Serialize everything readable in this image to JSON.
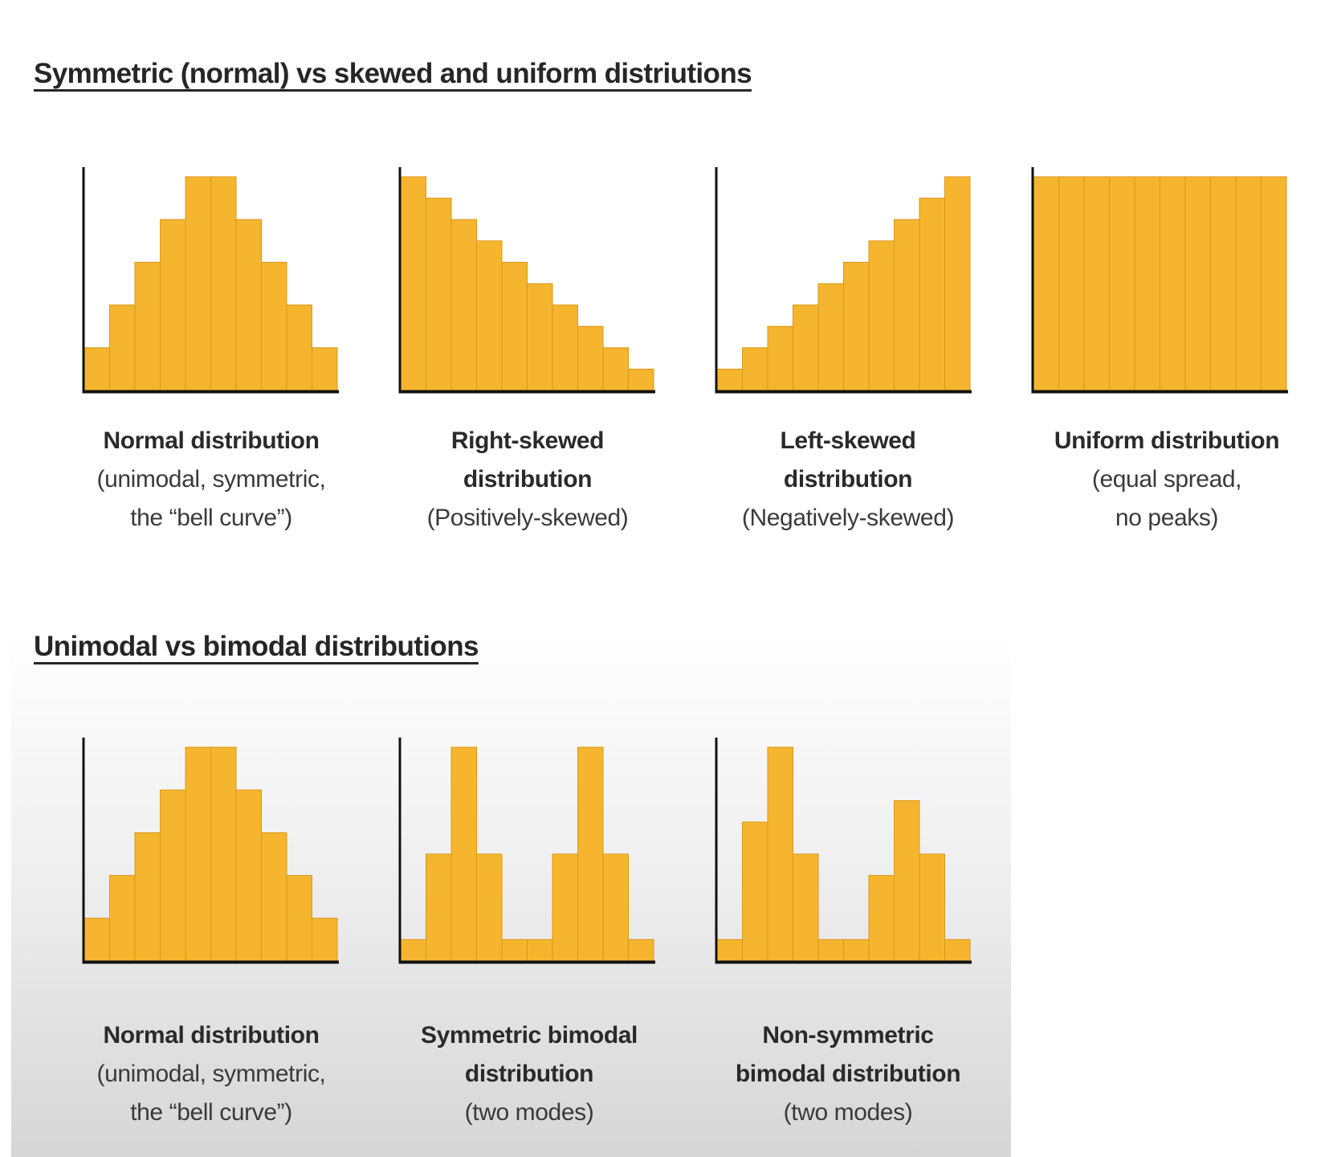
{
  "sections": [
    {
      "title": "Symmetric (normal) vs skewed and uniform distriutions"
    },
    {
      "title": "Unimodal vs bimodal distributions"
    }
  ],
  "colors": {
    "bar": "#f5b52e",
    "bar_line": "#d9981a",
    "axis": "#111111"
  },
  "captions": [
    {
      "title": [
        "Normal distribution"
      ],
      "sub": [
        "(unimodal, symmetric,",
        "the “bell curve”)"
      ]
    },
    {
      "title": [
        "Right-skewed",
        "distribution"
      ],
      "sub": [
        "(Positively-skewed)"
      ]
    },
    {
      "title": [
        "Left-skewed",
        "distribution"
      ],
      "sub": [
        "(Negatively-skewed)"
      ]
    },
    {
      "title": [
        "Uniform distribution"
      ],
      "sub": [
        "(equal spread,",
        "no peaks)"
      ]
    },
    {
      "title": [
        "Normal distribution"
      ],
      "sub": [
        "(unimodal, symmetric,",
        "the “bell curve”)"
      ]
    },
    {
      "title": [
        "Symmetric bimodal",
        "distribution"
      ],
      "sub": [
        "(two modes)"
      ]
    },
    {
      "title": [
        "Non-symmetric",
        "bimodal distribution"
      ],
      "sub": [
        "(two modes)"
      ]
    }
  ],
  "chart_data": [
    {
      "type": "bar",
      "values": [
        2,
        4,
        6,
        8,
        10,
        10,
        8,
        6,
        4,
        2
      ]
    },
    {
      "type": "bar",
      "values": [
        10,
        9,
        8,
        7,
        6,
        5,
        4,
        3,
        2,
        1
      ]
    },
    {
      "type": "bar",
      "values": [
        1,
        2,
        3,
        4,
        5,
        6,
        7,
        8,
        9,
        10
      ]
    },
    {
      "type": "bar",
      "values": [
        10,
        10,
        10,
        10,
        10,
        10,
        10,
        10,
        10,
        10
      ]
    },
    {
      "type": "bar",
      "values": [
        2,
        4,
        6,
        8,
        10,
        10,
        8,
        6,
        4,
        2
      ]
    },
    {
      "type": "bar",
      "values": [
        1,
        5,
        10,
        5,
        1,
        1,
        5,
        10,
        5,
        1
      ]
    },
    {
      "type": "bar",
      "values": [
        1,
        6.5,
        10,
        5,
        1,
        1,
        4,
        7.5,
        5,
        1
      ]
    }
  ]
}
